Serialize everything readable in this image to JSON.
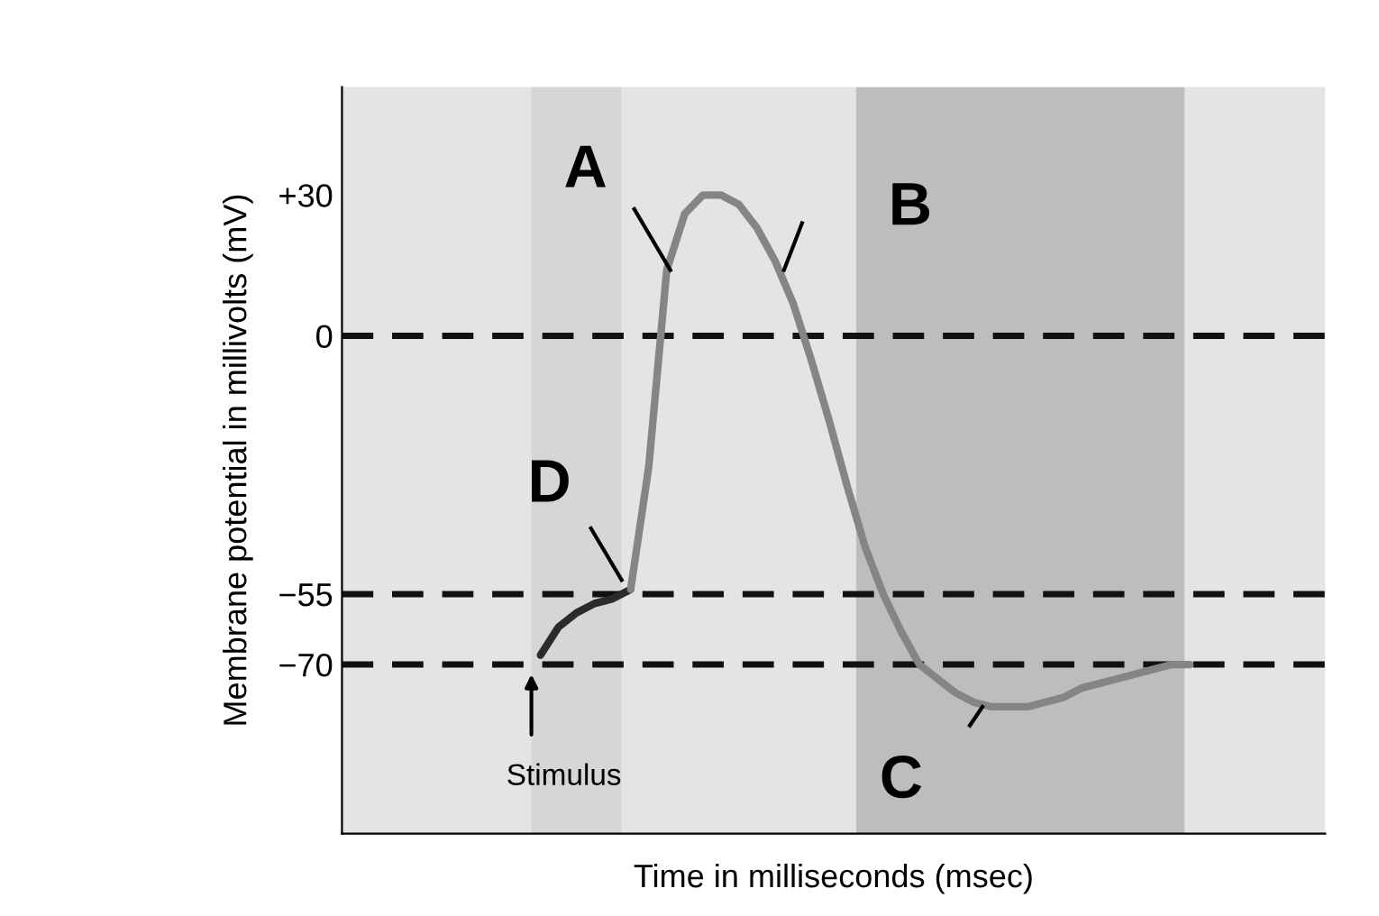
{
  "chart_data": {
    "type": "line",
    "xlabel": "Time in milliseconds (msec)",
    "ylabel": "Membrane potential in millivolts (mV)",
    "categories": [
      null,
      null,
      null,
      null,
      null,
      null,
      null,
      null,
      null,
      null,
      null,
      null,
      null,
      null,
      null,
      null,
      null,
      null,
      null,
      null,
      null,
      null,
      null,
      null,
      null,
      null,
      null,
      null,
      null,
      null,
      null,
      null,
      null,
      null,
      null,
      null,
      null,
      null,
      null,
      null,
      null,
      null,
      null,
      null,
      null,
      null,
      null,
      null,
      null,
      null,
      null,
      null,
      null,
      null,
      null
    ],
    "series": [
      {
        "color": "#2b2b2b",
        "values": [
          null,
          null,
          null,
          null,
          null,
          null,
          null,
          null,
          null,
          null,
          null,
          -68,
          -62,
          -59,
          -57,
          -56,
          -54,
          null,
          null,
          null,
          null,
          null,
          null,
          null,
          null,
          null,
          null,
          null,
          null,
          null,
          null,
          null,
          null,
          null,
          null,
          null,
          null,
          null,
          null,
          null,
          null,
          null,
          null,
          null,
          null,
          null,
          null,
          null,
          null,
          null,
          null,
          null,
          null,
          null,
          null
        ]
      },
      {
        "color": "#858585",
        "values": [
          null,
          null,
          null,
          null,
          null,
          null,
          null,
          null,
          null,
          null,
          null,
          null,
          null,
          null,
          null,
          null,
          -54,
          -28,
          14,
          26,
          30,
          30,
          28,
          23,
          16,
          7,
          -5,
          -18,
          -32,
          -45,
          -55,
          -63,
          -70,
          -73,
          -76,
          -78,
          -79,
          -79,
          -79,
          -78,
          -77,
          -75,
          -74,
          -73,
          -72,
          -71,
          -70,
          -70,
          null,
          null,
          null,
          null,
          null,
          null,
          null
        ]
      }
    ],
    "ylim": [
      -106,
      53
    ],
    "yticks": [
      {
        "value": 30,
        "label": "+30"
      },
      0,
      {
        "value": -55,
        "label": "−55"
      },
      {
        "value": -70,
        "label": "−70"
      }
    ],
    "tick_labels": "y",
    "grid": false,
    "line_style": "solid",
    "marker": "none",
    "ref_lines": [
      {
        "axis": "y",
        "value": 0,
        "color": "#111111",
        "line_style": "dashed"
      },
      {
        "axis": "y",
        "value": -55,
        "color": "#111111",
        "line_style": "dashed"
      },
      {
        "axis": "y",
        "value": -70,
        "color": "#111111",
        "line_style": "dashed"
      }
    ],
    "annotations": [
      "A",
      "B",
      "C",
      "D",
      "Stimulus"
    ]
  }
}
